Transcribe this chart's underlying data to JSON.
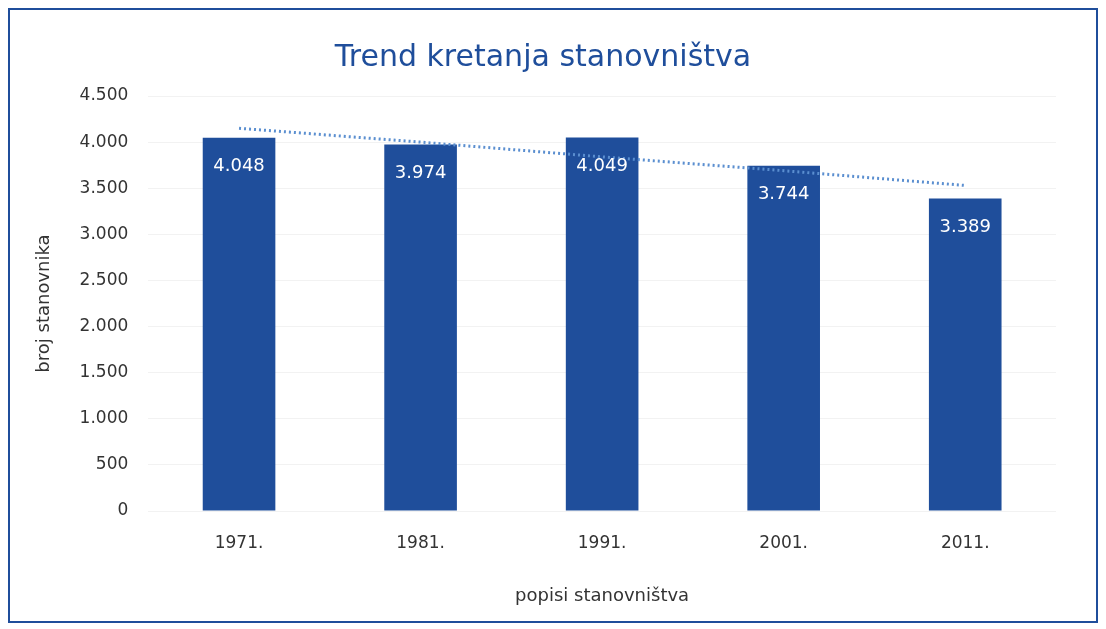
{
  "chart_data": {
    "type": "bar",
    "title": "Trend kretanja stanovništva",
    "xlabel": "popisi stanovništva",
    "ylabel": "broj stanovnika",
    "categories": [
      "1971.",
      "1981.",
      "1991.",
      "2001.",
      "2011."
    ],
    "series": [
      {
        "color": "#1f4e9b",
        "values": [
          4048,
          3974,
          4049,
          3744,
          3389
        ],
        "value_labels": [
          "4.048",
          "3.974",
          "4.049",
          "3.744",
          "3.389"
        ]
      },
      {
        "type": "line",
        "color": "#5b8fd0",
        "values": [
          4150,
          4000,
          3840,
          3690,
          3530
        ],
        "line_style": "dotted",
        "marker": "none"
      }
    ],
    "ylim": [
      0,
      4500
    ],
    "yticks": [
      0,
      500,
      {
        "value": 1000,
        "label": "1.000"
      },
      {
        "value": 1500,
        "label": "1.500"
      },
      {
        "value": 2000,
        "label": "2.000"
      },
      {
        "value": 2500,
        "label": "2.500"
      },
      {
        "value": 3000,
        "label": "3.000"
      },
      {
        "value": 3500,
        "label": "3.500"
      },
      {
        "value": 4000,
        "label": "4.000"
      },
      {
        "value": 4500,
        "label": "4.500"
      }
    ],
    "grid": "y",
    "legend": false
  }
}
